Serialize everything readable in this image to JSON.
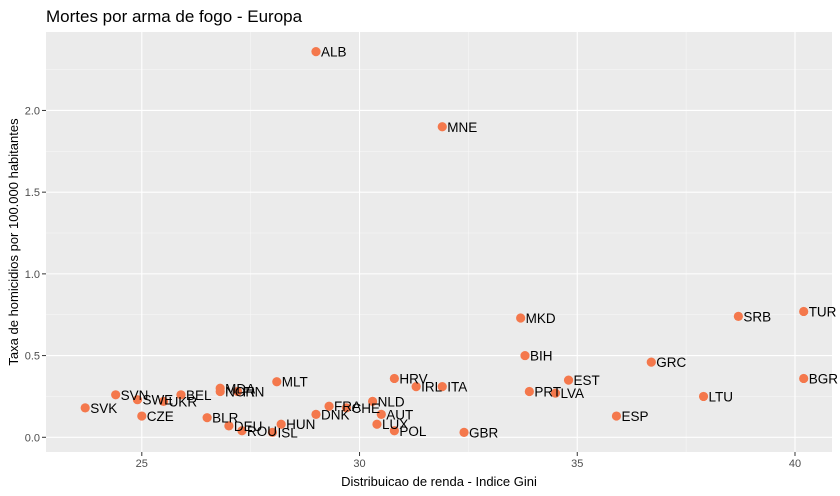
{
  "chart_data": {
    "type": "scatter",
    "title": "Mortes por arma de fogo - Europa",
    "xlabel": "Distribuicao de renda - Indice Gini",
    "ylabel": "Taxa de homicidios por 100.000 habitantes",
    "xlim": [
      22.8,
      40.85
    ],
    "ylim": [
      -0.09,
      2.48
    ],
    "x_ticks": [
      25,
      30,
      35,
      40
    ],
    "y_ticks": [
      0.0,
      0.5,
      1.0,
      1.5,
      2.0
    ],
    "x_tick_labels": [
      "25",
      "30",
      "35",
      "40"
    ],
    "y_tick_labels": [
      "0.0",
      "0.5",
      "1.0",
      "1.5",
      "2.0"
    ],
    "grid": true,
    "point_color": "#f4784c",
    "panel_color": "#ebebeb",
    "points": [
      {
        "label": "ALB",
        "x": 29.0,
        "y": 2.36
      },
      {
        "label": "MNE",
        "x": 31.9,
        "y": 1.9
      },
      {
        "label": "TUR",
        "x": 40.2,
        "y": 0.77
      },
      {
        "label": "SRB",
        "x": 38.7,
        "y": 0.74
      },
      {
        "label": "MKD",
        "x": 33.7,
        "y": 0.73
      },
      {
        "label": "BIH",
        "x": 33.8,
        "y": 0.5
      },
      {
        "label": "GRC",
        "x": 36.7,
        "y": 0.46
      },
      {
        "label": "BGR",
        "x": 40.2,
        "y": 0.36
      },
      {
        "label": "HRV",
        "x": 30.8,
        "y": 0.36
      },
      {
        "label": "EST",
        "x": 34.8,
        "y": 0.35
      },
      {
        "label": "MLT",
        "x": 28.1,
        "y": 0.34
      },
      {
        "label": "IRL",
        "x": 31.3,
        "y": 0.31
      },
      {
        "label": "ITA",
        "x": 31.9,
        "y": 0.31
      },
      {
        "label": "MDA",
        "x": 26.8,
        "y": 0.3
      },
      {
        "label": "NOR",
        "x": 26.8,
        "y": 0.28
      },
      {
        "label": "FIN",
        "x": 27.2,
        "y": 0.28
      },
      {
        "label": "PRT",
        "x": 33.9,
        "y": 0.28
      },
      {
        "label": "LVA",
        "x": 34.5,
        "y": 0.27
      },
      {
        "label": "BEL",
        "x": 25.9,
        "y": 0.26
      },
      {
        "label": "SVN",
        "x": 24.4,
        "y": 0.26
      },
      {
        "label": "LTU",
        "x": 37.9,
        "y": 0.25
      },
      {
        "label": "SWE",
        "x": 24.9,
        "y": 0.23
      },
      {
        "label": "UKR",
        "x": 25.5,
        "y": 0.22
      },
      {
        "label": "NLD",
        "x": 30.3,
        "y": 0.22
      },
      {
        "label": "FRA",
        "x": 29.3,
        "y": 0.19
      },
      {
        "label": "CHE",
        "x": 29.7,
        "y": 0.18
      },
      {
        "label": "SVK",
        "x": 23.7,
        "y": 0.18
      },
      {
        "label": "DNK",
        "x": 29.0,
        "y": 0.14
      },
      {
        "label": "AUT",
        "x": 30.5,
        "y": 0.14
      },
      {
        "label": "CZE",
        "x": 25.0,
        "y": 0.13
      },
      {
        "label": "ESP",
        "x": 35.9,
        "y": 0.13
      },
      {
        "label": "BLR",
        "x": 26.5,
        "y": 0.12
      },
      {
        "label": "LUX",
        "x": 30.4,
        "y": 0.08
      },
      {
        "label": "HUN",
        "x": 28.2,
        "y": 0.08
      },
      {
        "label": "DEU",
        "x": 27.0,
        "y": 0.07
      },
      {
        "label": "ROU",
        "x": 27.3,
        "y": 0.04
      },
      {
        "label": "POL",
        "x": 30.8,
        "y": 0.04
      },
      {
        "label": "ISL",
        "x": 28.0,
        "y": 0.03
      },
      {
        "label": "GBR",
        "x": 32.4,
        "y": 0.03
      }
    ]
  }
}
